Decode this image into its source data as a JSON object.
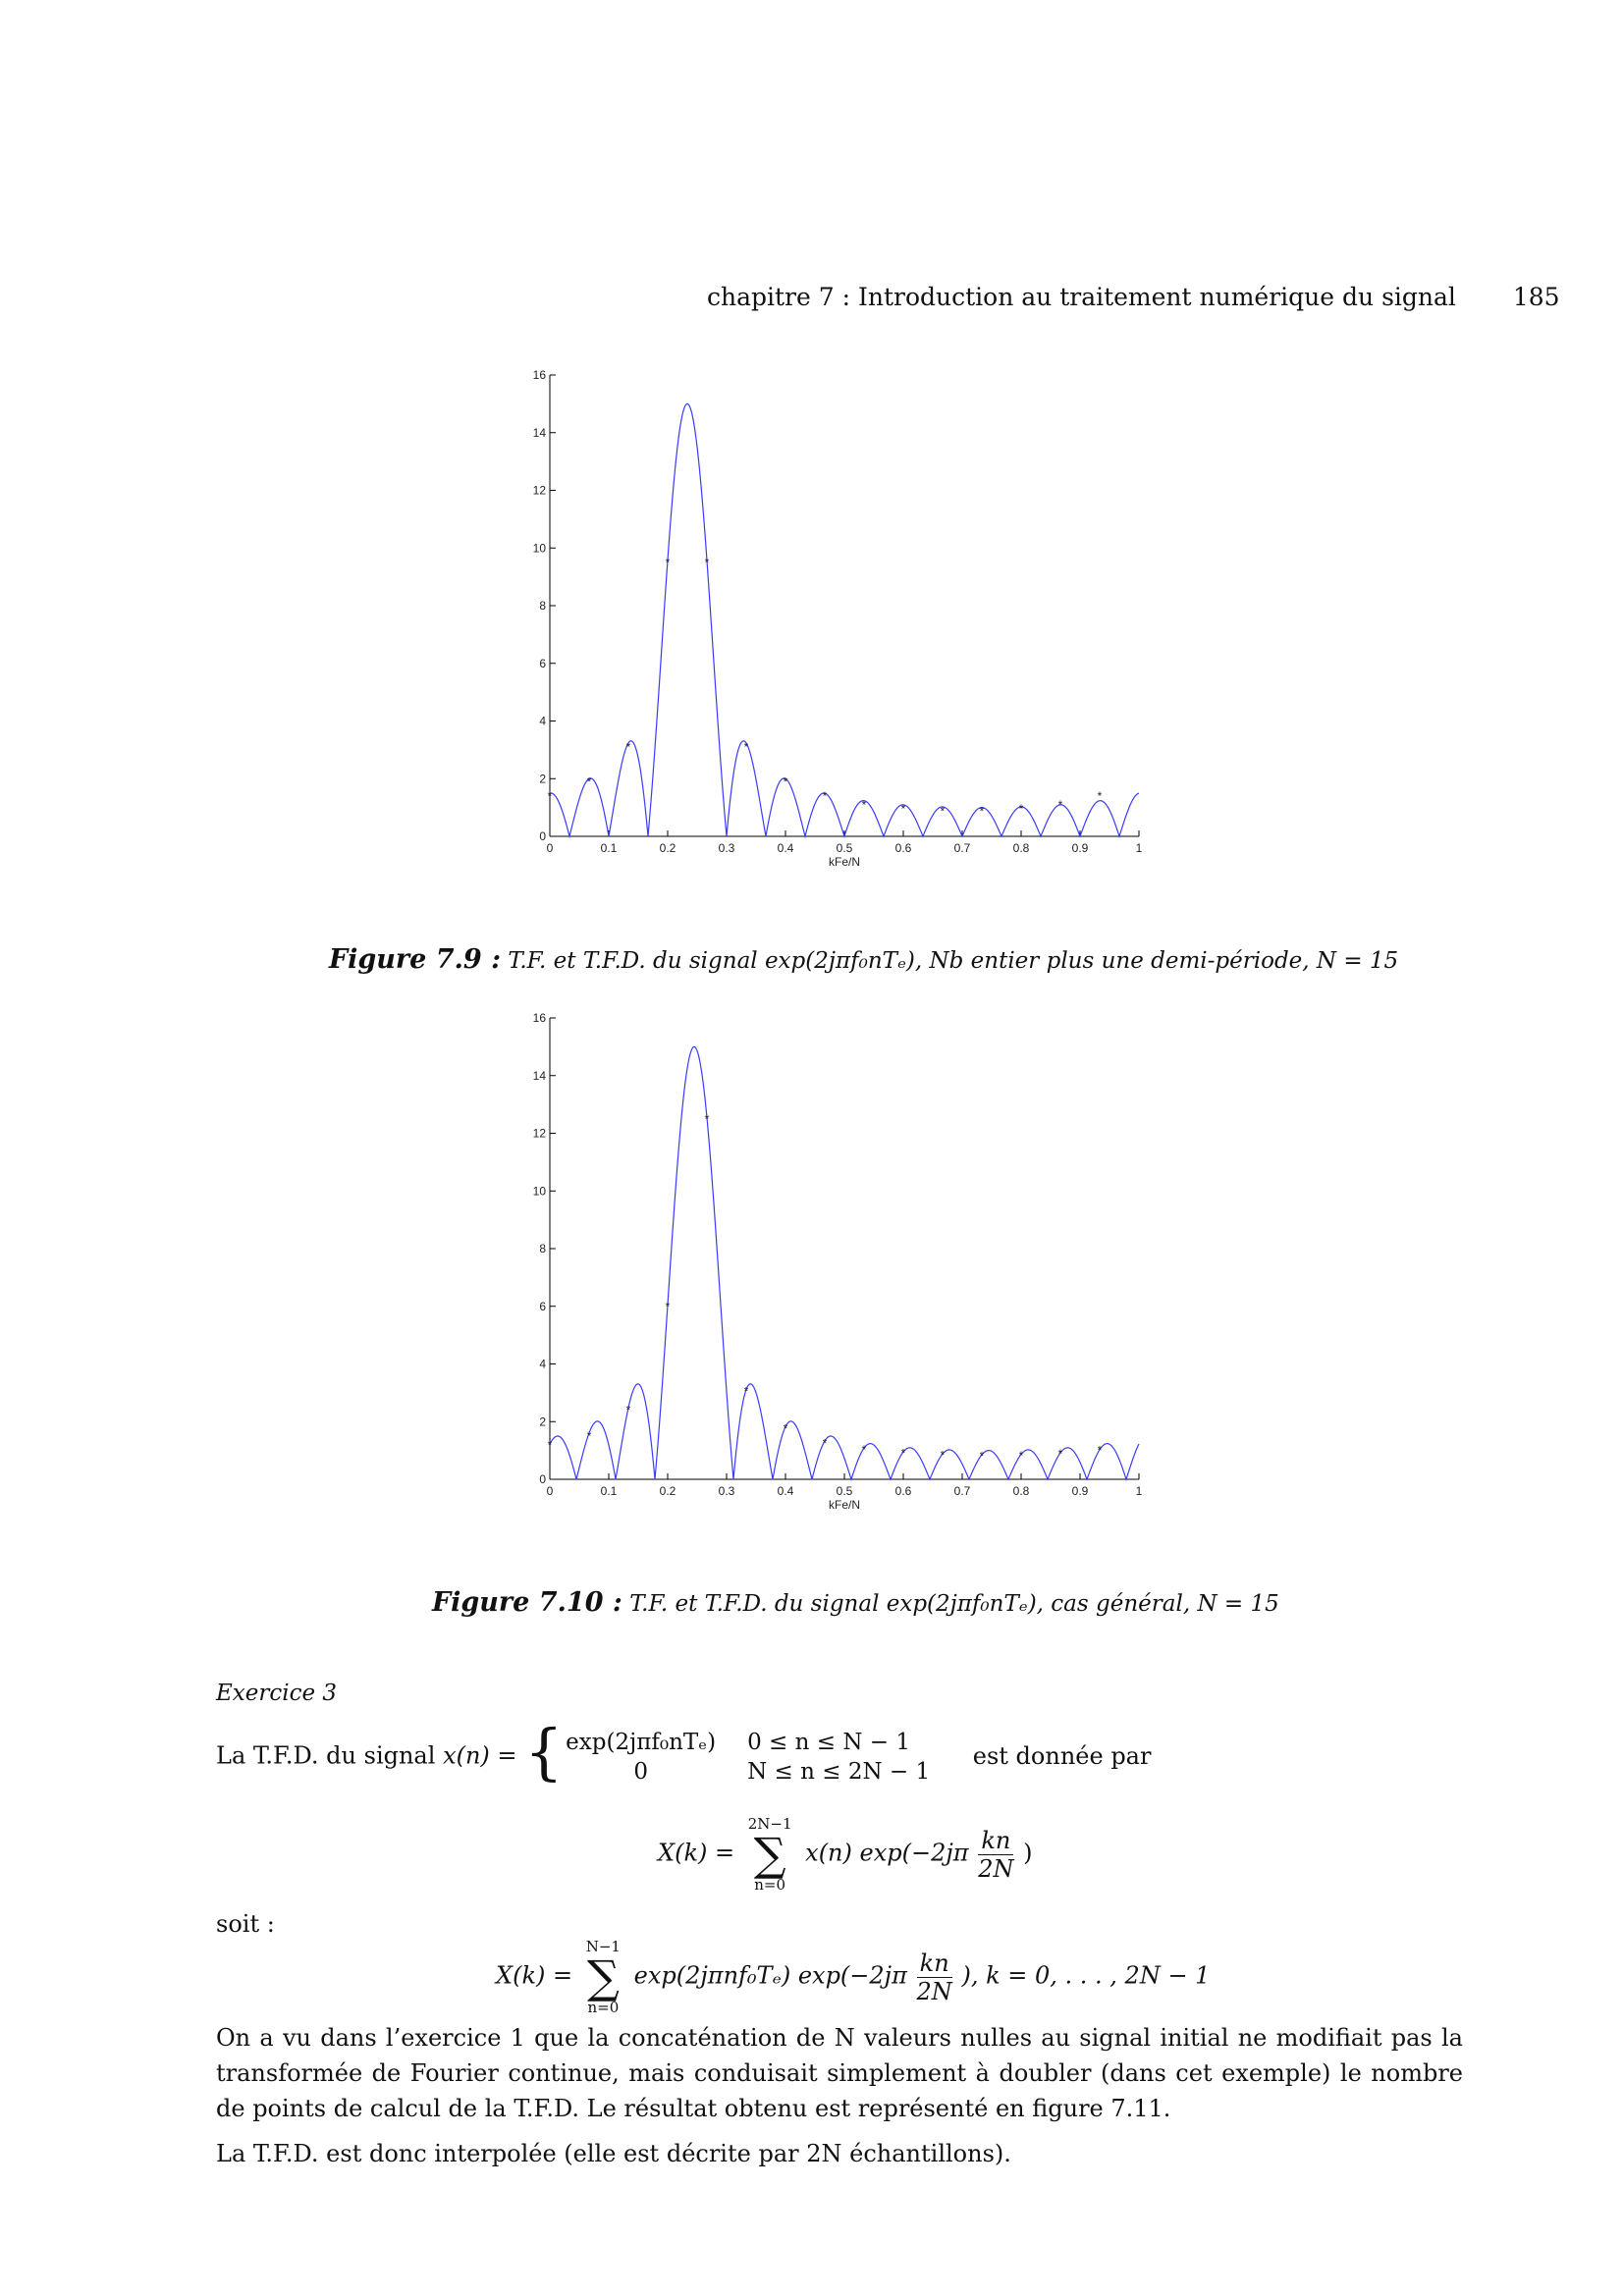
{
  "header": {
    "running_title": "chapitre 7 : Introduction au traitement numérique du signal",
    "page_number": "185"
  },
  "figures": [
    {
      "number_label": "Figure 7.9 :",
      "caption": "T.F. et T.F.D. du signal exp(2jπf₀nTₑ), Nb entier plus une demi-période, N = 15",
      "chart_data": {
        "type": "line",
        "xlabel": "kFe/N",
        "ylabel": "",
        "xlim": [
          0,
          1
        ],
        "ylim": [
          0,
          16
        ],
        "xticks": [
          "0",
          "0.1",
          "0.2",
          "0.3",
          "0.4",
          "0.5",
          "0.6",
          "0.7",
          "0.8",
          "0.9",
          "1"
        ],
        "yticks": [
          "0",
          "2",
          "4",
          "6",
          "8",
          "10",
          "12",
          "14",
          "16"
        ],
        "f0": 0.2333,
        "N": 15,
        "series": [
          {
            "kind": "continuous",
            "color": "#3a3aff"
          },
          {
            "kind": "samples",
            "marker": "*",
            "color": "#1a1aff",
            "x": [
              0,
              0.0667,
              0.1333,
              0.2,
              0.2667,
              0.3333,
              0.4,
              0.4667,
              0.5333,
              0.6,
              0.6667,
              0.7333,
              0.8,
              0.8667,
              0.9333
            ],
            "y": [
              1.5,
              2.0,
              3.2,
              9.6,
              9.6,
              3.2,
              2.0,
              1.5,
              1.2,
              1.05,
              0.97,
              0.97,
              1.05,
              1.2,
              1.5
            ]
          }
        ]
      }
    },
    {
      "number_label": "Figure 7.10 :",
      "caption": "T.F. et T.F.D. du signal exp(2jπf₀nTₑ), cas général, N = 15",
      "chart_data": {
        "type": "line",
        "xlabel": "kFe/N",
        "ylabel": "",
        "xlim": [
          0,
          1
        ],
        "ylim": [
          0,
          16
        ],
        "xticks": [
          "0",
          "0.1",
          "0.2",
          "0.3",
          "0.4",
          "0.5",
          "0.6",
          "0.7",
          "0.8",
          "0.9",
          "1"
        ],
        "yticks": [
          "0",
          "2",
          "4",
          "6",
          "8",
          "10",
          "12",
          "14",
          "16"
        ],
        "f0": 0.245,
        "N": 15,
        "series": [
          {
            "kind": "continuous",
            "color": "#3a3aff"
          },
          {
            "kind": "samples",
            "marker": "*",
            "color": "#1a1aff",
            "x": [
              0,
              0.0667,
              0.1333,
              0.2,
              0.2667,
              0.3333,
              0.4,
              0.4667,
              0.5333,
              0.6,
              0.6667,
              0.7333,
              0.8,
              0.8667,
              0.9333
            ],
            "y": [
              1.3,
              1.6,
              2.5,
              6.1,
              12.6,
              3.15,
              1.85,
              1.35,
              1.12,
              1.0,
              0.93,
              0.9,
              0.92,
              0.98,
              1.1
            ]
          }
        ]
      }
    }
  ],
  "exercise": {
    "title": "Exercice 3",
    "intro": "La T.F.D. du signal",
    "xn": "x(n) =",
    "case1_expr": "exp(2jπf₀nTₑ)",
    "case1_cond": "0 ≤ n ≤ N − 1",
    "case2_expr": "0",
    "case2_cond": "N ≤ n ≤ 2N − 1",
    "given_by": "est donnée par",
    "eq1_lhs": "X(k) =",
    "eq1_sum_top": "2N−1",
    "eq1_sum_bottom": "n=0",
    "eq1_body": "x(n) exp(−2jπ",
    "frac_num": "kn",
    "frac_den": "2N",
    "eq1_close": ")",
    "soit": "soit :",
    "eq2_lhs": "X(k) =",
    "eq2_sum_top": "N−1",
    "eq2_sum_bottom": "n=0",
    "eq2_body": "exp(2jπnf₀Tₑ) exp(−2jπ",
    "eq2_tail": "),  k = 0, . . . ,  2N − 1",
    "para1": "On a vu dans l’exercice 1 que la concaténation de N valeurs nulles au signal initial ne modifiait pas la transformée de Fourier continue, mais conduisait simplement à doubler (dans cet exemple) le nombre de points de calcul de la T.F.D. Le résultat obtenu est représenté en figure 7.11.",
    "para2": "La T.F.D. est donc interpolée (elle est décrite par 2N échantillons)."
  }
}
